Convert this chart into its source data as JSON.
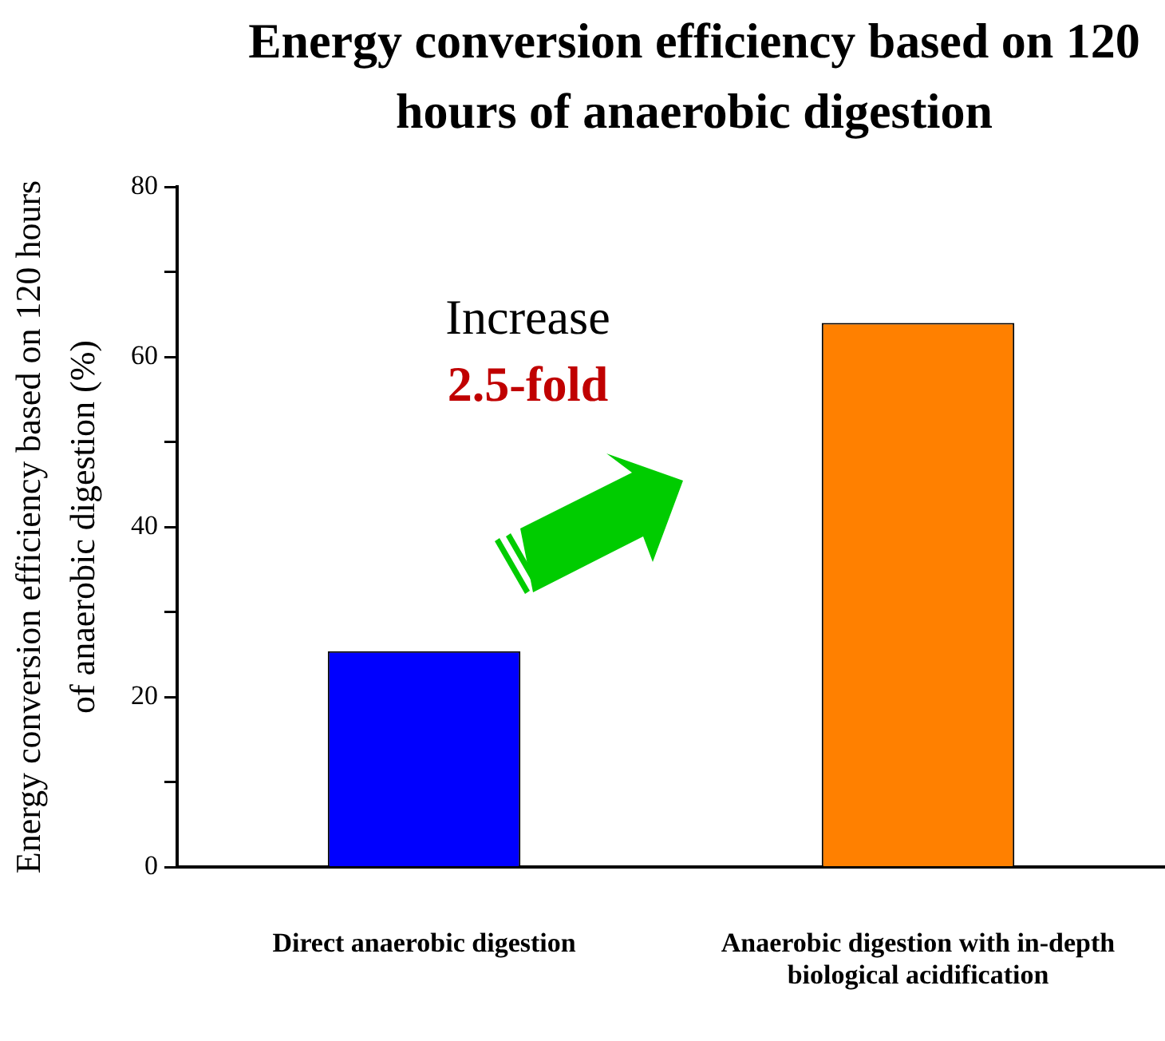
{
  "chart_data": {
    "type": "bar",
    "title": "Energy conversion efficiency based on 120 hours of anaerobic digestion",
    "ylabel": "Energy conversion efficiency based on 120 hours of anaerobic digestion (%)",
    "categories": [
      "Direct anaerobic digestion",
      "Anaerobic digestion with in-depth biological acidification"
    ],
    "values": [
      25.4,
      64
    ],
    "colors": [
      "#0000ff",
      "#ff8000"
    ],
    "ylim": [
      0,
      80
    ],
    "yticks": [
      0,
      {
        "value": 10,
        "label": null
      },
      20,
      {
        "value": 30,
        "label": null
      },
      40,
      {
        "value": 50,
        "label": null
      },
      60,
      {
        "value": 70,
        "label": null
      },
      80
    ],
    "grid": false,
    "legend": false,
    "annotations": [
      "Increase",
      "2.5-fold"
    ]
  }
}
